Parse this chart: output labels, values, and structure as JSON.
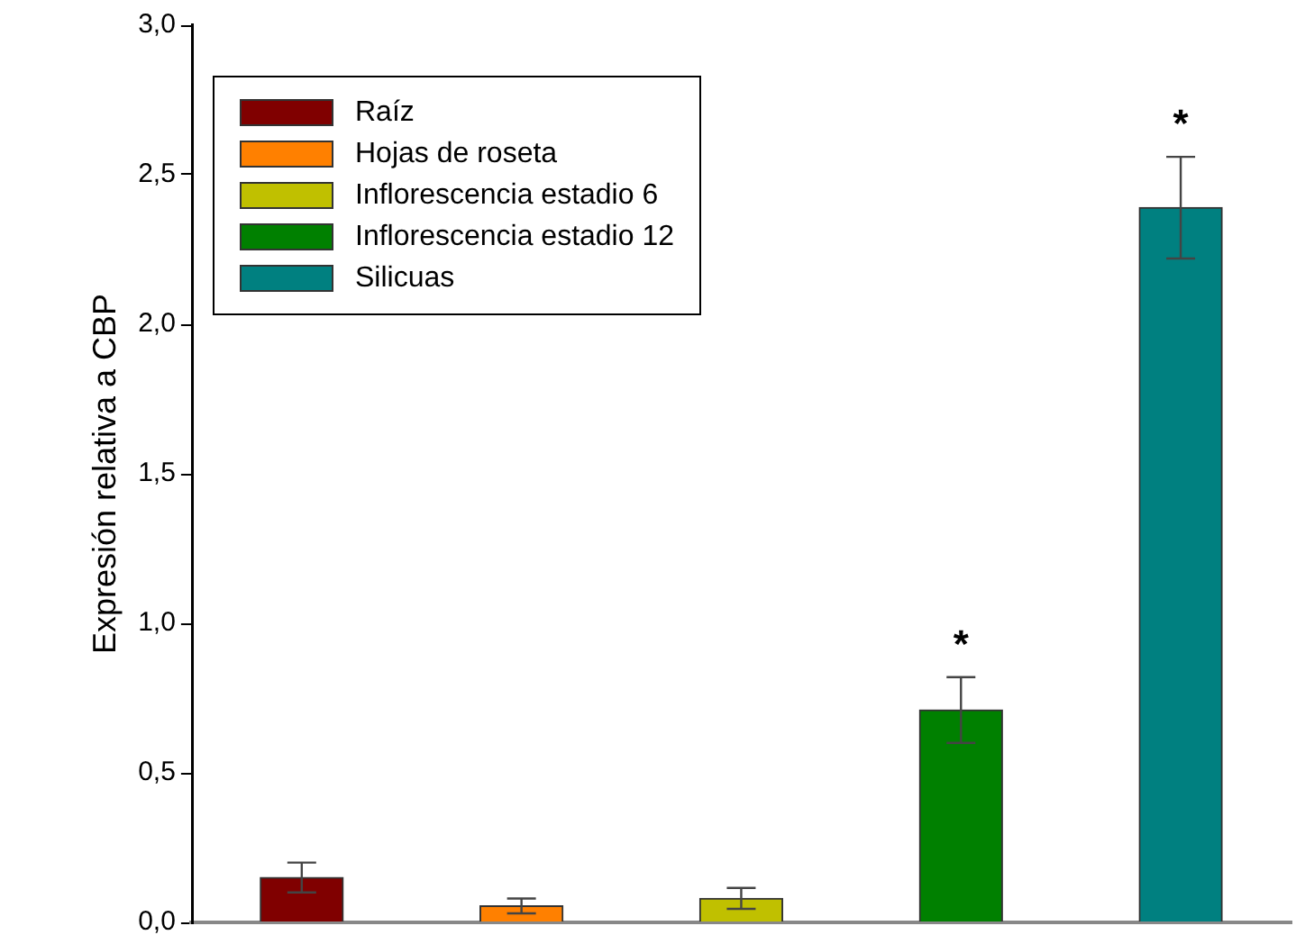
{
  "chart_data": {
    "type": "bar",
    "ylabel": "Expresión relativa a CBP",
    "categories": [
      null,
      null,
      null,
      null,
      null
    ],
    "ylim": [
      0,
      3
    ],
    "yticks": [
      {
        "value": 0,
        "label": "0,0"
      },
      {
        "value": 0.5,
        "label": "0,5"
      },
      {
        "value": 1,
        "label": "1,0"
      },
      {
        "value": 1.5,
        "label": "1,5"
      },
      {
        "value": 2,
        "label": "2,0"
      },
      {
        "value": 2.5,
        "label": "2,5"
      },
      {
        "value": 3,
        "label": "3,0"
      }
    ],
    "grid": false,
    "legend": "top left",
    "series": [
      {
        "name": "Raíz",
        "color": "#800000",
        "values": [
          0.15,
          null,
          null,
          null,
          null
        ],
        "errors": [
          0.05,
          null,
          null,
          null,
          null
        ]
      },
      {
        "name": "Hojas de roseta",
        "color": "#ff8000",
        "values": [
          null,
          0.055,
          null,
          null,
          null
        ],
        "errors": [
          null,
          0.025,
          null,
          null,
          null
        ]
      },
      {
        "name": "Inflorescencia estadio 6",
        "color": "#c0c000",
        "values": [
          null,
          null,
          0.08,
          null,
          null
        ],
        "errors": [
          null,
          null,
          0.035,
          null,
          null
        ]
      },
      {
        "name": "Inflorescencia estadio 12",
        "color": "#008000",
        "values": [
          null,
          null,
          null,
          0.71,
          null
        ],
        "errors": [
          null,
          null,
          null,
          0.11,
          null
        ],
        "value_labels": [
          null,
          null,
          null,
          "*",
          null
        ]
      },
      {
        "name": "Silicuas",
        "color": "#008080",
        "values": [
          null,
          null,
          null,
          null,
          2.39
        ],
        "errors": [
          null,
          null,
          null,
          null,
          0.17
        ],
        "value_labels": [
          null,
          null,
          null,
          null,
          "*"
        ]
      }
    ]
  }
}
